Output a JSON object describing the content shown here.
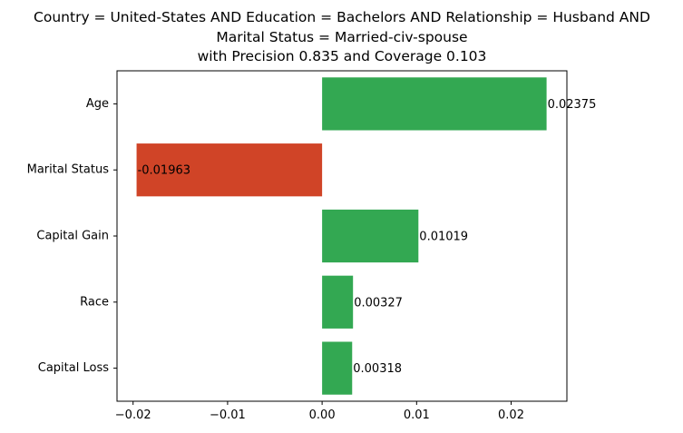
{
  "chart_data": {
    "type": "bar",
    "orientation": "horizontal",
    "title_lines": [
      "Country = United-States AND Education = Bachelors AND Relationship = Husband AND",
      "Marital Status = Married-civ-spouse",
      "with Precision 0.835 and Coverage 0.103"
    ],
    "categories": [
      "Age",
      "Marital Status",
      "Capital Gain",
      "Race",
      "Capital Loss"
    ],
    "values": [
      0.02375,
      -0.01963,
      0.01019,
      0.00327,
      0.00318
    ],
    "value_labels": [
      "0.02375",
      "-0.01963",
      "0.01019",
      "0.00327",
      "0.00318"
    ],
    "xticks": [
      -0.02,
      -0.01,
      0.0,
      0.01,
      0.02
    ],
    "xtick_labels": [
      "−0.02",
      "−0.01",
      "0.00",
      "0.01",
      "0.02"
    ],
    "xlim": [
      -0.0217,
      0.0259
    ],
    "xlabel": "",
    "ylabel": "",
    "grid": false,
    "colors": {
      "positive": "#33a852",
      "negative": "#d04427"
    }
  }
}
